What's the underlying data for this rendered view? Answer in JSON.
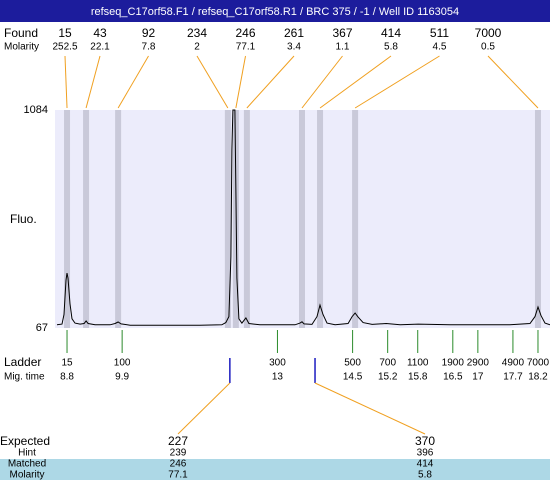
{
  "title": "refseq_C17orf58.F1 / refseq_C17orf58.R1 / BRC 375 / -1 / Well ID 1163054",
  "found": {
    "label": "Found",
    "molarity_label": "Molarity",
    "peaks": [
      {
        "size": 15,
        "molarity": 252.5,
        "time": 8.8
      },
      {
        "size": 43,
        "molarity": 22.1,
        "time": 9.18
      },
      {
        "size": 92,
        "molarity": 7.8,
        "time": 9.82
      },
      {
        "size": 234,
        "molarity": 2,
        "time": 12.01
      },
      {
        "size": 246,
        "molarity": 77.1,
        "time": 12.17
      },
      {
        "size": 261,
        "molarity": 3.4,
        "time": 12.39
      },
      {
        "size": 367,
        "molarity": 1.1,
        "time": 13.49
      },
      {
        "size": 414,
        "molarity": 5.8,
        "time": 13.85
      },
      {
        "size": 511,
        "molarity": 4.5,
        "time": 14.55
      },
      {
        "size": 7000,
        "molarity": 0.5,
        "time": 18.2
      }
    ]
  },
  "fluorescence": {
    "label": "Fluo.",
    "ylim": [
      67,
      1084
    ],
    "yticks": [
      67,
      1084
    ],
    "xlim": [
      8.56,
      18.44
    ],
    "trace": {
      "x": [
        8.6,
        8.7,
        8.74,
        8.78,
        8.8,
        8.82,
        8.86,
        8.9,
        8.96,
        9.06,
        9.14,
        9.18,
        9.22,
        9.36,
        9.66,
        9.76,
        9.82,
        9.88,
        10.06,
        11.45,
        11.89,
        11.97,
        12.03,
        12.07,
        12.09,
        12.11,
        12.13,
        12.15,
        12.17,
        12.19,
        12.23,
        12.29,
        12.37,
        12.43,
        12.65,
        13.35,
        13.45,
        13.49,
        13.53,
        13.69,
        13.79,
        13.85,
        13.91,
        13.99,
        14.15,
        14.41,
        14.49,
        14.55,
        14.61,
        14.71,
        14.89,
        15.17,
        15.45,
        15.81,
        16.45,
        17.64,
        18.04,
        18.14,
        18.2,
        18.26,
        18.34,
        18.44
      ],
      "y": [
        82,
        85,
        130,
        290,
        323,
        300,
        180,
        110,
        90,
        85,
        88,
        100,
        88,
        82,
        82,
        88,
        95,
        86,
        80,
        80,
        82,
        92,
        120,
        400,
        900,
        1084,
        1084,
        1084,
        700,
        300,
        110,
        90,
        114,
        88,
        82,
        82,
        90,
        96,
        86,
        84,
        120,
        174,
        130,
        90,
        82,
        88,
        120,
        137,
        118,
        92,
        84,
        88,
        82,
        85,
        82,
        82,
        88,
        120,
        165,
        125,
        90,
        82
      ]
    }
  },
  "ladder": {
    "label": "Ladder",
    "time_label": "Mig. time",
    "sizes": [
      15,
      100,
      300,
      500,
      700,
      1100,
      1900,
      2900,
      4900,
      7000
    ],
    "times": [
      8.8,
      9.9,
      13,
      14.5,
      15.2,
      15.8,
      16.5,
      17,
      17.7,
      18.2
    ]
  },
  "expected": {
    "label": "Expected",
    "hint_label": "Hint",
    "matched_label": "Matched",
    "molarity_label": "Molarity",
    "items": [
      {
        "size": 227,
        "time": 12.05,
        "hint": 239,
        "matched": 246,
        "molarity": 77.1
      },
      {
        "size": 370,
        "time": 13.75,
        "hint": 396,
        "matched": 414,
        "molarity": 5.8
      }
    ]
  }
}
